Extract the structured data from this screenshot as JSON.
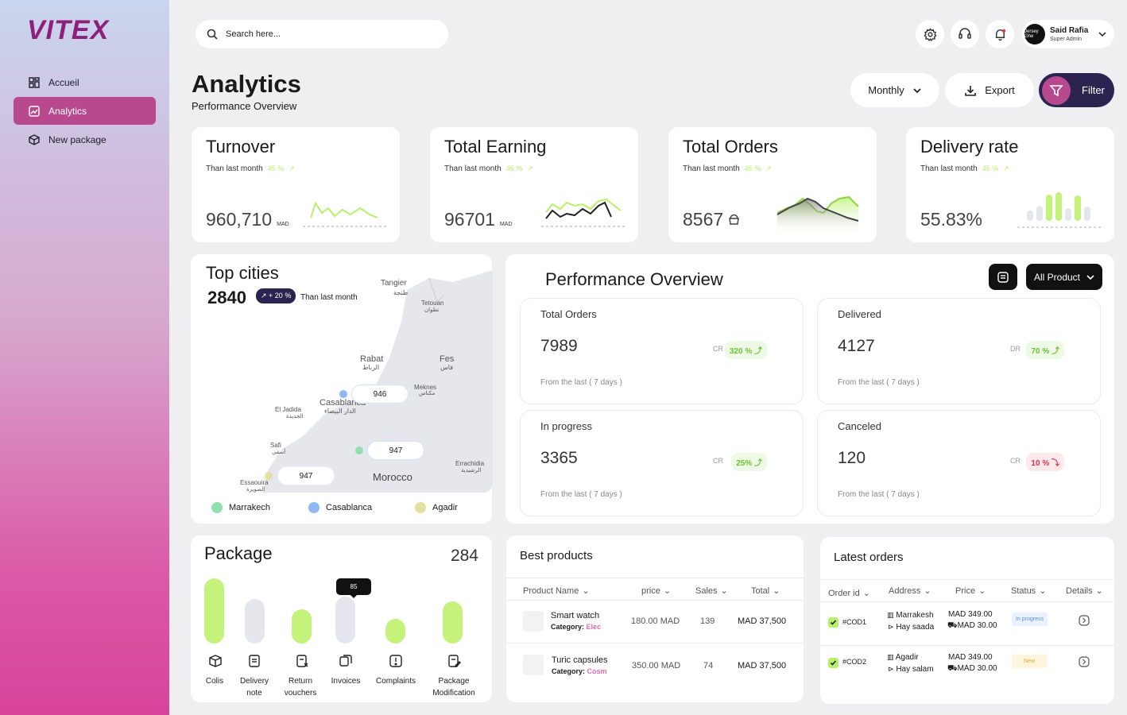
{
  "brand": {
    "logo_text": "VITEX",
    "accent": "#b8498f",
    "dark": "#2b2450",
    "lime": "#b7f16b"
  },
  "sidebar": {
    "items": [
      {
        "label": "Accueil",
        "icon": "dashboard-icon"
      },
      {
        "label": "Analytics",
        "icon": "analytics-icon",
        "active": true
      },
      {
        "label": "New package",
        "icon": "package-plus-icon"
      }
    ]
  },
  "search": {
    "placeholder": "Search here..."
  },
  "header_icons": [
    "settings-icon",
    "headset-icon",
    "bell-icon"
  ],
  "user": {
    "name": "Said Rafia",
    "role": "Super Admin",
    "avatar_text": "Jersey Ghe"
  },
  "page": {
    "title": "Analytics",
    "subtitle": "Performance Overview"
  },
  "toolbar": {
    "period": "Monthly",
    "export": "Export",
    "filter": "Filter"
  },
  "kpis": [
    {
      "title": "Turnover",
      "sub": "Than last month",
      "delta": "45 %",
      "value": "960,710",
      "unit": "MAD"
    },
    {
      "title": "Total Earning",
      "sub": "Than last month",
      "delta": "45 %",
      "value": "96701",
      "unit": "MAD"
    },
    {
      "title": "Total Orders",
      "sub": "Than last month",
      "delta": "45 %",
      "value": "8567",
      "unit": ""
    },
    {
      "title": "Delivery rate",
      "sub": "Than last month",
      "delta": "45 %",
      "value": "55.83%",
      "unit": ""
    }
  ],
  "top_cities": {
    "title": "Top cities",
    "value": "2840",
    "badge": "+ 20  %",
    "sub": "Than last month",
    "map_labels": {
      "tangier": "Tangier",
      "tangier_ar": "طنجة",
      "tetouan": "Tetouan",
      "tetouan_ar": "تطوان",
      "rabat": "Rabat",
      "rabat_ar": "الرباط",
      "fes": "Fes",
      "fes_ar": "فاس",
      "meknes": "Meknes",
      "meknes_ar": "مكناس",
      "casablanca": "Casablanca",
      "casablanca_ar": "الدار البيضاء",
      "eljadida": "El Jadida",
      "eljadida_ar": "الجديدة",
      "safi": "Safi",
      "safi_ar": "أسفي",
      "errachidia": "Errachidia",
      "errachidia_ar": "الرشيدية",
      "essaouira": "Essaouira",
      "essaouira_ar": "الصويرة",
      "morocco": "Morocco"
    },
    "bubbles": [
      "946",
      "947",
      "947"
    ],
    "legend": [
      {
        "label": "Marrakech",
        "color": "#8fe0b0"
      },
      {
        "label": "Casablanca",
        "color": "#8fb8f4"
      },
      {
        "label": "Agadir",
        "color": "#e3e0a0"
      }
    ]
  },
  "performance": {
    "title": "Performance Overview",
    "filter": "All Product",
    "boxes": [
      {
        "title": "Total Orders",
        "value": "7989",
        "cr_label": "CR",
        "pct": "320 %",
        "footer": "From the last ( 7 days )"
      },
      {
        "title": "Delivered",
        "value": "4127",
        "cr_label": "DR",
        "pct": "70 %",
        "footer": "From the last ( 7 days )"
      },
      {
        "title": "In progress",
        "value": "3365",
        "cr_label": "CR",
        "pct": "25%",
        "footer": "From the last ( 7 days )"
      },
      {
        "title": "Canceled",
        "value": "120",
        "cr_label": "CR",
        "pct": "10 %",
        "footer": "From the last ( 7 days )"
      }
    ]
  },
  "package": {
    "title": "Package",
    "total": "284",
    "tooltip": "85",
    "items": [
      {
        "label": "Colis",
        "label2": "",
        "level": 1.0,
        "color": "#c4f27a"
      },
      {
        "label": "Delivery",
        "label2": "note",
        "level": 0.68,
        "color": "#e6e7ee"
      },
      {
        "label": "Return",
        "label2": "vouchers",
        "level": 0.52,
        "color": "#c4f27a"
      },
      {
        "label": "Invoices",
        "label2": "",
        "level": 0.72,
        "color": "#e6e7ee"
      },
      {
        "label": "Complaints",
        "label2": "",
        "level": 0.38,
        "color": "#c4f27a"
      },
      {
        "label": "Package",
        "label2": "Modification",
        "level": 0.65,
        "color": "#c4f27a"
      }
    ]
  },
  "best_products": {
    "title": "Best products",
    "columns": [
      "Product Name",
      "price",
      "Sales",
      "Total"
    ],
    "rows": [
      {
        "name": "Smart watch",
        "category_label": "Category:",
        "category": "Elec",
        "price": "180.00 MAD",
        "sales": "139",
        "total": "MAD 37,500"
      },
      {
        "name": "Turic capsules",
        "category_label": "Category:",
        "category": "Cosm",
        "price": "350.00 MAD",
        "sales": "74",
        "total": "MAD 37,500"
      }
    ]
  },
  "latest_orders": {
    "title": "Latest orders",
    "columns": [
      "Order id",
      "Address",
      "Price",
      "Status",
      "Details"
    ],
    "rows": [
      {
        "id": "#COD1",
        "city": "Marrakesh",
        "area": "Hay saada",
        "price": "MAD 349.00",
        "fee": "MAD 30.00",
        "status": "In progress"
      },
      {
        "id": "#COD2",
        "city": "Agadir",
        "area": "Hay salam",
        "price": "MAD 349.00",
        "fee": "MAD 30.00",
        "status": "New"
      }
    ]
  }
}
